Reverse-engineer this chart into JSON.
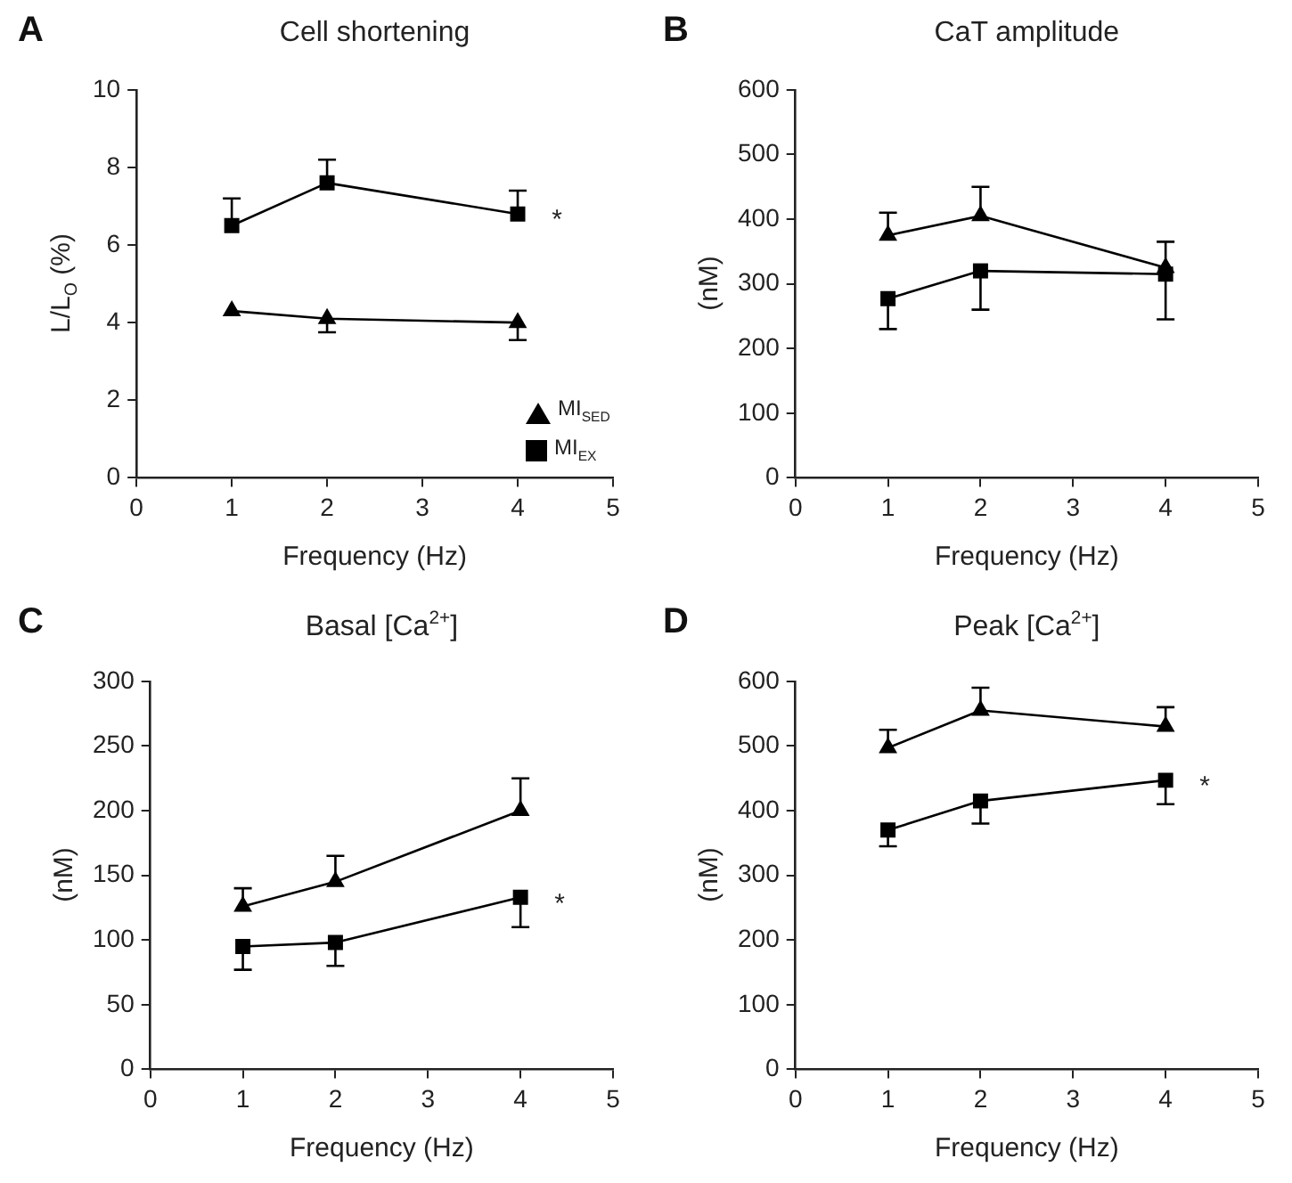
{
  "chart_data": [
    {
      "type": "line",
      "title": "Cell shortening",
      "xlabel": "Frequency (Hz)",
      "ylabel": "L/L$_{O}$ (%)",
      "x": [
        1,
        2,
        4
      ],
      "xlim": [
        0,
        5
      ],
      "xticks": [
        0,
        1,
        2,
        3,
        4,
        5
      ],
      "ylim": [
        0,
        10
      ],
      "yticks": [
        0,
        2,
        4,
        6,
        8,
        10
      ],
      "grid": false,
      "legend": "bottom right",
      "annotations": [
        "A",
        "*"
      ],
      "series": [
        {
          "name": "MI$_{SED}$",
          "color": "#000000",
          "marker": "triangle",
          "values": [
            4.3,
            4.1,
            4.0
          ],
          "errors": [
            null,
            [
              3.75,
              4.1
            ],
            [
              3.55,
              4.0
            ]
          ]
        },
        {
          "name": "MI$_{EX}$",
          "color": "#000000",
          "marker": "square",
          "values": [
            6.5,
            7.6,
            6.8
          ],
          "errors": [
            [
              6.5,
              7.2
            ],
            [
              7.6,
              8.2
            ],
            [
              6.8,
              7.4
            ]
          ]
        }
      ]
    },
    {
      "type": "line",
      "title": "CaT amplitude",
      "xlabel": "Frequency (Hz)",
      "ylabel": "(nM)",
      "x": [
        1,
        2,
        4
      ],
      "xlim": [
        0,
        5
      ],
      "xticks": [
        0,
        1,
        2,
        3,
        4,
        5
      ],
      "ylim": [
        0,
        600
      ],
      "yticks": [
        0,
        100,
        200,
        300,
        400,
        500,
        600
      ],
      "grid": false,
      "annotations": [
        "B"
      ],
      "series": [
        {
          "color": "#000000",
          "marker": "triangle",
          "values": [
            375,
            405,
            325
          ],
          "errors": [
            [
              375,
              410
            ],
            [
              405,
              450
            ],
            [
              325,
              365
            ]
          ]
        },
        {
          "color": "#000000",
          "marker": "square",
          "values": [
            277,
            320,
            315
          ],
          "errors": [
            [
              230,
              277
            ],
            [
              260,
              320
            ],
            [
              245,
              315
            ]
          ]
        }
      ]
    },
    {
      "type": "line",
      "title": "Basal [Ca$^{2+}$]",
      "xlabel": "Frequency (Hz)",
      "ylabel": "(nM)",
      "x": [
        1,
        2,
        4
      ],
      "xlim": [
        0,
        5
      ],
      "xticks": [
        0,
        1,
        2,
        3,
        4,
        5
      ],
      "ylim": [
        0,
        300
      ],
      "yticks": [
        0,
        50,
        100,
        150,
        200,
        250,
        300
      ],
      "grid": false,
      "annotations": [
        "C",
        "*"
      ],
      "series": [
        {
          "color": "#000000",
          "marker": "triangle",
          "values": [
            126,
            145,
            200
          ],
          "errors": [
            [
              126,
              140
            ],
            [
              145,
              165
            ],
            [
              200,
              225
            ]
          ]
        },
        {
          "color": "#000000",
          "marker": "square",
          "values": [
            95,
            98,
            133
          ],
          "errors": [
            [
              77,
              95
            ],
            [
              80,
              98
            ],
            [
              110,
              133
            ]
          ]
        }
      ]
    },
    {
      "type": "line",
      "title": "Peak [Ca$^{2+}$]",
      "xlabel": "Frequency (Hz)",
      "ylabel": "(nM)",
      "x": [
        1,
        2,
        4
      ],
      "xlim": [
        0,
        5
      ],
      "xticks": [
        0,
        1,
        2,
        3,
        4,
        5
      ],
      "ylim": [
        0,
        600
      ],
      "yticks": [
        0,
        100,
        200,
        300,
        400,
        500,
        600
      ],
      "grid": false,
      "annotations": [
        "D",
        "*"
      ],
      "series": [
        {
          "color": "#000000",
          "marker": "triangle",
          "values": [
            497,
            555,
            530
          ],
          "errors": [
            [
              497,
              525
            ],
            [
              555,
              590
            ],
            [
              530,
              560
            ]
          ]
        },
        {
          "color": "#000000",
          "marker": "square",
          "values": [
            370,
            415,
            447
          ],
          "errors": [
            [
              345,
              370
            ],
            [
              380,
              415
            ],
            [
              410,
              447
            ]
          ]
        }
      ]
    }
  ]
}
